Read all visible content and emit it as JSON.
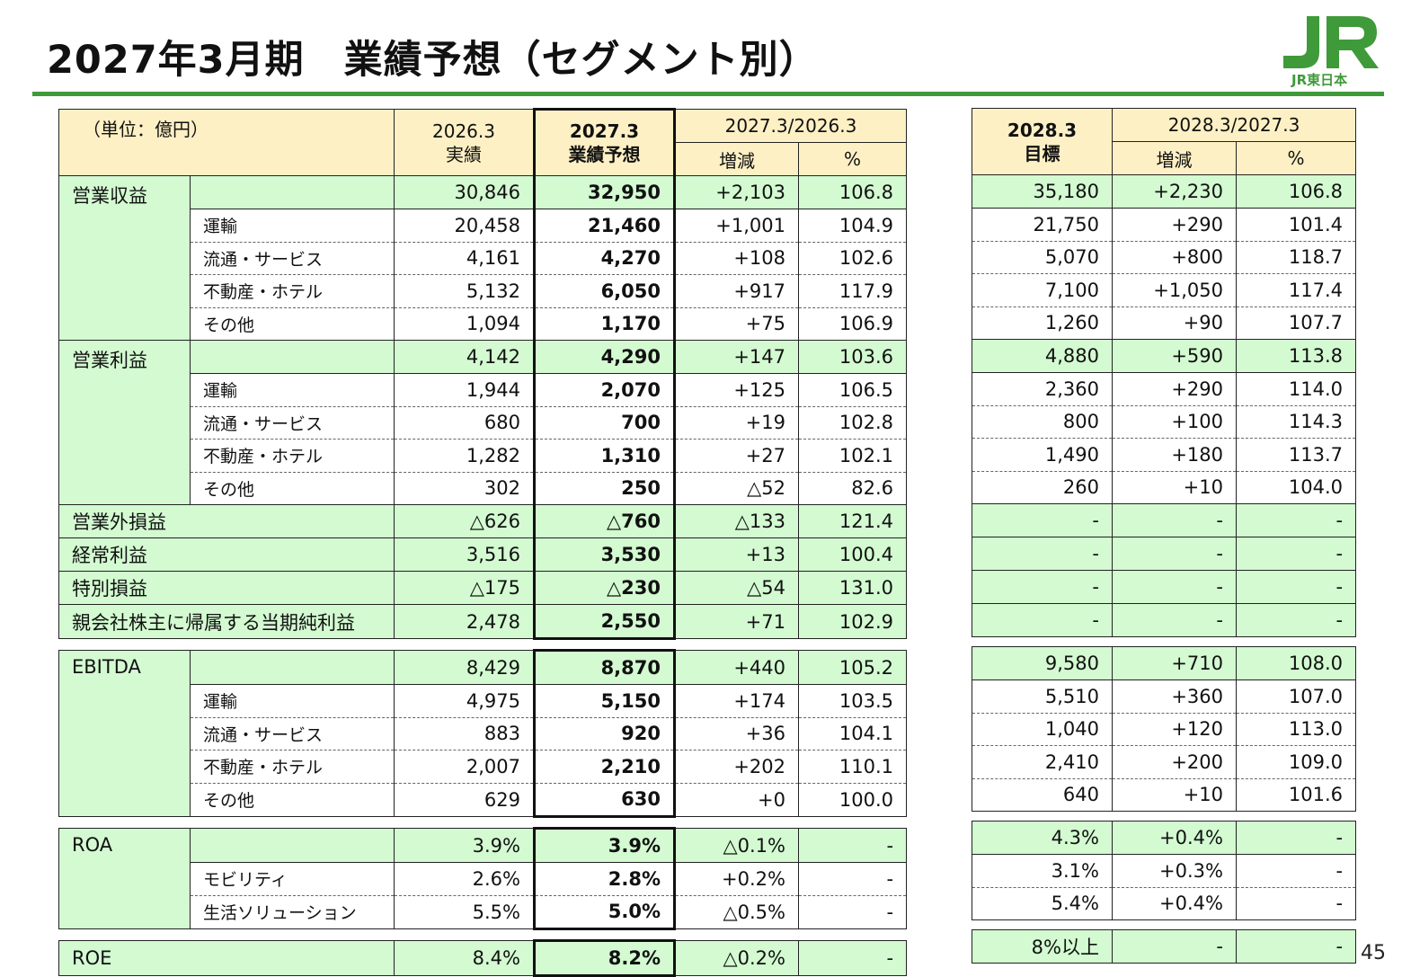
{
  "header": {
    "title": "2027年3月期　業績予想（セグメント別）",
    "logo_text": "JR東日本",
    "page_number": "45"
  },
  "left_header": {
    "unit": "（単位：億円）",
    "col1": [
      "2026.3",
      "実績"
    ],
    "col2": [
      "2027.3",
      "業績予想"
    ],
    "group": "2027.3/2026.3",
    "diff": "増減",
    "pct": "%"
  },
  "right_header": {
    "col1": [
      "2028.3",
      "目標"
    ],
    "group": "2028.3/2027.3",
    "diff": "増減",
    "pct": "%"
  },
  "blocks": [
    {
      "label": "営業収益",
      "main": {
        "left": [
          "30,846",
          "32,950",
          "+2,103",
          "106.8"
        ],
        "right": [
          "35,180",
          "+2,230",
          "106.8"
        ]
      },
      "subs": [
        {
          "label": "運輸",
          "left": [
            "20,458",
            "21,460",
            "+1,001",
            "104.9"
          ],
          "right": [
            "21,750",
            "+290",
            "101.4"
          ]
        },
        {
          "label": "流通・サービス",
          "left": [
            "4,161",
            "4,270",
            "+108",
            "102.6"
          ],
          "right": [
            "5,070",
            "+800",
            "118.7"
          ]
        },
        {
          "label": "不動産・ホテル",
          "left": [
            "5,132",
            "6,050",
            "+917",
            "117.9"
          ],
          "right": [
            "7,100",
            "+1,050",
            "117.4"
          ]
        },
        {
          "label": "その他",
          "left": [
            "1,094",
            "1,170",
            "+75",
            "106.9"
          ],
          "right": [
            "1,260",
            "+90",
            "107.7"
          ]
        }
      ]
    },
    {
      "label": "営業利益",
      "main": {
        "left": [
          "4,142",
          "4,290",
          "+147",
          "103.6"
        ],
        "right": [
          "4,880",
          "+590",
          "113.8"
        ]
      },
      "subs": [
        {
          "label": "運輸",
          "left": [
            "1,944",
            "2,070",
            "+125",
            "106.5"
          ],
          "right": [
            "2,360",
            "+290",
            "114.0"
          ]
        },
        {
          "label": "流通・サービス",
          "left": [
            "680",
            "700",
            "+19",
            "102.8"
          ],
          "right": [
            "800",
            "+100",
            "114.3"
          ]
        },
        {
          "label": "不動産・ホテル",
          "left": [
            "1,282",
            "1,310",
            "+27",
            "102.1"
          ],
          "right": [
            "1,490",
            "+180",
            "113.7"
          ]
        },
        {
          "label": "その他",
          "left": [
            "302",
            "250",
            "△52",
            "82.6"
          ],
          "right": [
            "260",
            "+10",
            "104.0"
          ]
        }
      ]
    },
    {
      "label": "営業外損益",
      "main": {
        "left": [
          "△626",
          "△760",
          "△133",
          "121.4"
        ],
        "right": [
          "-",
          "-",
          "-"
        ]
      },
      "subs": []
    },
    {
      "label": "経常利益",
      "main": {
        "left": [
          "3,516",
          "3,530",
          "+13",
          "100.4"
        ],
        "right": [
          "-",
          "-",
          "-"
        ]
      },
      "subs": []
    },
    {
      "label": "特別損益",
      "main": {
        "left": [
          "△175",
          "△230",
          "△54",
          "131.0"
        ],
        "right": [
          "-",
          "-",
          "-"
        ]
      },
      "subs": []
    },
    {
      "label": "親会社株主に帰属する当期純利益",
      "main": {
        "left": [
          "2,478",
          "2,550",
          "+71",
          "102.9"
        ],
        "right": [
          "-",
          "-",
          "-"
        ]
      },
      "subs": []
    },
    {
      "label": "EBITDA",
      "main": {
        "left": [
          "8,429",
          "8,870",
          "+440",
          "105.2"
        ],
        "right": [
          "9,580",
          "+710",
          "108.0"
        ]
      },
      "subs": [
        {
          "label": "運輸",
          "left": [
            "4,975",
            "5,150",
            "+174",
            "103.5"
          ],
          "right": [
            "5,510",
            "+360",
            "107.0"
          ]
        },
        {
          "label": "流通・サービス",
          "left": [
            "883",
            "920",
            "+36",
            "104.1"
          ],
          "right": [
            "1,040",
            "+120",
            "113.0"
          ]
        },
        {
          "label": "不動産・ホテル",
          "left": [
            "2,007",
            "2,210",
            "+202",
            "110.1"
          ],
          "right": [
            "2,410",
            "+200",
            "109.0"
          ]
        },
        {
          "label": "その他",
          "left": [
            "629",
            "630",
            "+0",
            "100.0"
          ],
          "right": [
            "640",
            "+10",
            "101.6"
          ]
        }
      ]
    },
    {
      "label": "ROA",
      "main": {
        "left": [
          "3.9%",
          "3.9%",
          "△0.1%",
          "-"
        ],
        "right": [
          "4.3%",
          "+0.4%",
          "-"
        ]
      },
      "subs": [
        {
          "label": "モビリティ",
          "left": [
            "2.6%",
            "2.8%",
            "+0.2%",
            "-"
          ],
          "right": [
            "3.1%",
            "+0.3%",
            "-"
          ]
        },
        {
          "label": "生活ソリューション",
          "left": [
            "5.5%",
            "5.0%",
            "△0.5%",
            "-"
          ],
          "right": [
            "5.4%",
            "+0.4%",
            "-"
          ]
        }
      ]
    },
    {
      "label": "ROE",
      "main": {
        "left": [
          "8.4%",
          "8.2%",
          "△0.2%",
          "-"
        ],
        "right": [
          "8%以上",
          "-",
          "-"
        ]
      },
      "subs": []
    }
  ]
}
